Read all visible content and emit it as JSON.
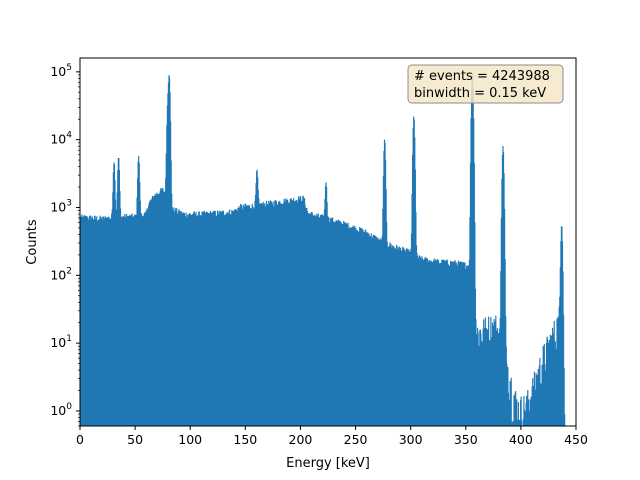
{
  "chart_data": {
    "type": "bar",
    "style": "histogram-step-filled",
    "xlabel": "Energy [keV]",
    "ylabel": "Counts",
    "xlim": [
      0,
      450
    ],
    "ylim": [
      0.6,
      160000
    ],
    "yscale": "log",
    "xticks": [
      "0",
      "50",
      "100",
      "150",
      "200",
      "250",
      "300",
      "350",
      "400",
      "450"
    ],
    "yticks": [
      {
        "value": 1,
        "base": "10",
        "exp": "0"
      },
      {
        "value": 10,
        "base": "10",
        "exp": "1"
      },
      {
        "value": 100,
        "base": "10",
        "exp": "2"
      },
      {
        "value": 1000,
        "base": "10",
        "exp": "3"
      },
      {
        "value": 10000,
        "base": "10",
        "exp": "4"
      },
      {
        "value": 100000,
        "base": "10",
        "exp": "5"
      }
    ],
    "annotation": {
      "lines": [
        "# events = 4243988",
        "binwidth = 0.15 keV"
      ],
      "placement": "top-right"
    },
    "color": "#1f77b4",
    "binwidth_kev": 0.15,
    "continuum": [
      {
        "x": 0,
        "y": 700
      },
      {
        "x": 10,
        "y": 690
      },
      {
        "x": 20,
        "y": 670
      },
      {
        "x": 30,
        "y": 700
      },
      {
        "x": 40,
        "y": 720
      },
      {
        "x": 50,
        "y": 720
      },
      {
        "x": 60,
        "y": 780
      },
      {
        "x": 62,
        "y": 1100
      },
      {
        "x": 68,
        "y": 1500
      },
      {
        "x": 75,
        "y": 1800
      },
      {
        "x": 78,
        "y": 1600
      },
      {
        "x": 85,
        "y": 900
      },
      {
        "x": 95,
        "y": 780
      },
      {
        "x": 110,
        "y": 780
      },
      {
        "x": 125,
        "y": 810
      },
      {
        "x": 140,
        "y": 860
      },
      {
        "x": 145,
        "y": 1000
      },
      {
        "x": 160,
        "y": 1050
      },
      {
        "x": 175,
        "y": 1150
      },
      {
        "x": 190,
        "y": 1250
      },
      {
        "x": 203,
        "y": 1350
      },
      {
        "x": 207,
        "y": 800
      },
      {
        "x": 220,
        "y": 700
      },
      {
        "x": 240,
        "y": 560
      },
      {
        "x": 260,
        "y": 420
      },
      {
        "x": 272,
        "y": 320
      },
      {
        "x": 285,
        "y": 260
      },
      {
        "x": 300,
        "y": 210
      },
      {
        "x": 310,
        "y": 170
      },
      {
        "x": 325,
        "y": 155
      },
      {
        "x": 340,
        "y": 150
      },
      {
        "x": 350,
        "y": 140
      },
      {
        "x": 356,
        "y": 130
      },
      {
        "x": 360,
        "y": 12
      },
      {
        "x": 370,
        "y": 14
      },
      {
        "x": 378,
        "y": 15
      },
      {
        "x": 382,
        "y": 8
      },
      {
        "x": 388,
        "y": 4
      },
      {
        "x": 393,
        "y": 1.5
      },
      {
        "x": 398,
        "y": 0.9
      },
      {
        "x": 405,
        "y": 1
      },
      {
        "x": 412,
        "y": 2
      },
      {
        "x": 420,
        "y": 5
      },
      {
        "x": 428,
        "y": 10
      },
      {
        "x": 432,
        "y": 14
      },
      {
        "x": 436,
        "y": 20
      },
      {
        "x": 440,
        "y": 0.6
      }
    ],
    "peaks": [
      {
        "x": 30.9,
        "y": 4000
      },
      {
        "x": 35.0,
        "y": 4900
      },
      {
        "x": 53.2,
        "y": 5000
      },
      {
        "x": 79.6,
        "y": 30000
      },
      {
        "x": 81.0,
        "y": 85000
      },
      {
        "x": 160.6,
        "y": 2500
      },
      {
        "x": 223.2,
        "y": 1700
      },
      {
        "x": 276.4,
        "y": 9800
      },
      {
        "x": 302.9,
        "y": 22000
      },
      {
        "x": 356.0,
        "y": 100000
      },
      {
        "x": 383.8,
        "y": 8000
      },
      {
        "x": 437.0,
        "y": 550
      }
    ],
    "bins_plotted_step_kev": 0.5
  }
}
